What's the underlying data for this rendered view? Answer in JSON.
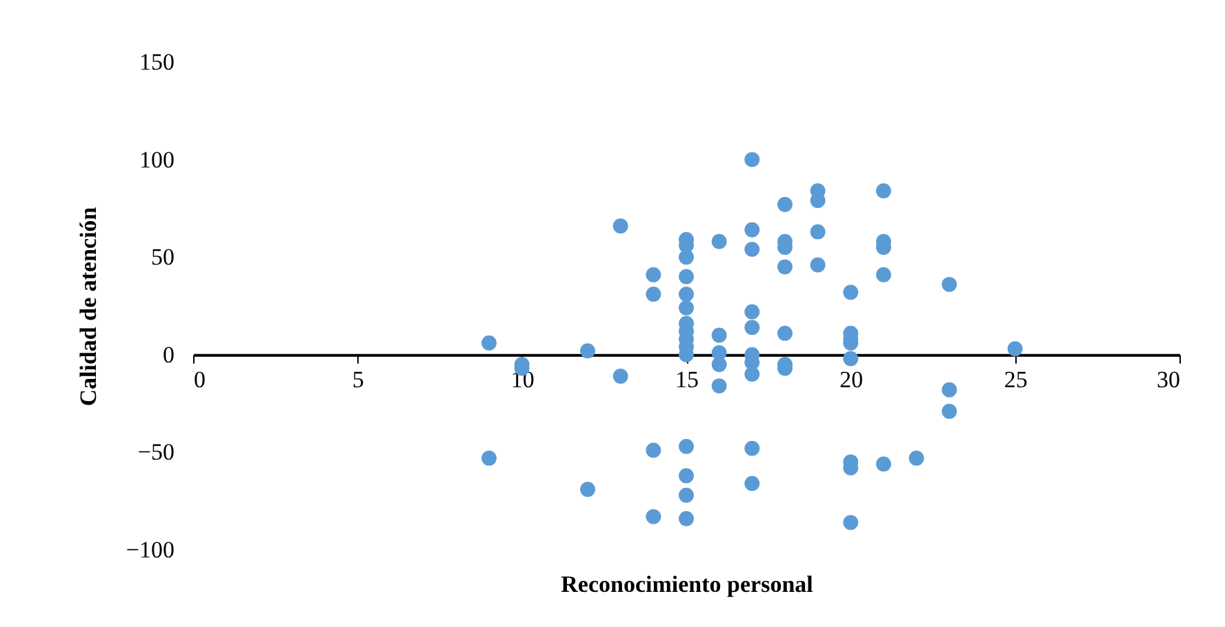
{
  "chart_data": {
    "type": "scatter",
    "xlabel": "Reconocimiento personal",
    "ylabel": "Calidad de atención",
    "xlim": [
      0,
      30
    ],
    "xticks": [
      0,
      5,
      10,
      15,
      20,
      25,
      30
    ],
    "ylim": [
      -100,
      150
    ],
    "yticks": [
      -100,
      -50,
      0,
      50,
      100,
      150
    ],
    "grid": false,
    "marker": "circle",
    "series": [
      {
        "color": "#5b9bd5",
        "x": [
          9,
          9,
          10,
          10,
          12,
          12,
          13,
          13,
          14,
          14,
          14,
          14,
          15,
          15,
          15,
          15,
          15,
          15,
          15,
          15,
          15,
          15,
          15,
          15,
          15,
          15,
          15,
          16,
          16,
          16,
          16,
          16,
          17,
          17,
          17,
          17,
          17,
          17,
          17,
          17,
          17,
          17,
          18,
          18,
          18,
          18,
          18,
          18,
          18,
          19,
          19,
          19,
          19,
          20,
          20,
          20,
          20,
          20,
          20,
          20,
          20,
          21,
          21,
          21,
          21,
          21,
          22,
          23,
          23,
          23,
          25
        ],
        "values": [
          6,
          -53,
          -5,
          -7,
          2,
          -69,
          66,
          -11,
          41,
          31,
          -49,
          -83,
          59,
          56,
          50,
          40,
          31,
          24,
          16,
          12,
          8,
          4,
          0,
          -47,
          -62,
          -72,
          -84,
          58,
          10,
          1,
          -5,
          -16,
          100,
          64,
          54,
          22,
          14,
          0,
          -4,
          -10,
          -48,
          -66,
          77,
          58,
          55,
          45,
          11,
          -5,
          -7,
          84,
          79,
          63,
          46,
          32,
          11,
          8,
          6,
          -2,
          -55,
          -58,
          -86,
          84,
          58,
          55,
          41,
          -56,
          -53,
          36,
          -18,
          -29,
          3
        ]
      }
    ]
  }
}
